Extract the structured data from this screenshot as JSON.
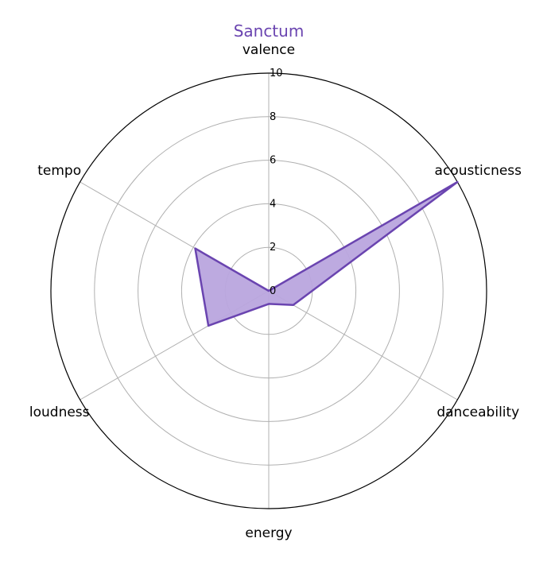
{
  "colors": {
    "series": "#6a44b0",
    "fill": "#b9a5de",
    "grid": "#b0b0b0",
    "frame": "#000000"
  },
  "chart_data": {
    "type": "radar",
    "title": "Sanctum",
    "categories": [
      "valence",
      "acousticness",
      "danceability",
      "energy",
      "loudness",
      "tempo"
    ],
    "series": [
      {
        "values": [
          0,
          10,
          1.3,
          0.6,
          3.2,
          3.9
        ]
      }
    ],
    "rlim": [
      0,
      10
    ],
    "rticks": [
      0,
      2,
      4,
      6,
      8,
      10
    ],
    "grid": true
  }
}
